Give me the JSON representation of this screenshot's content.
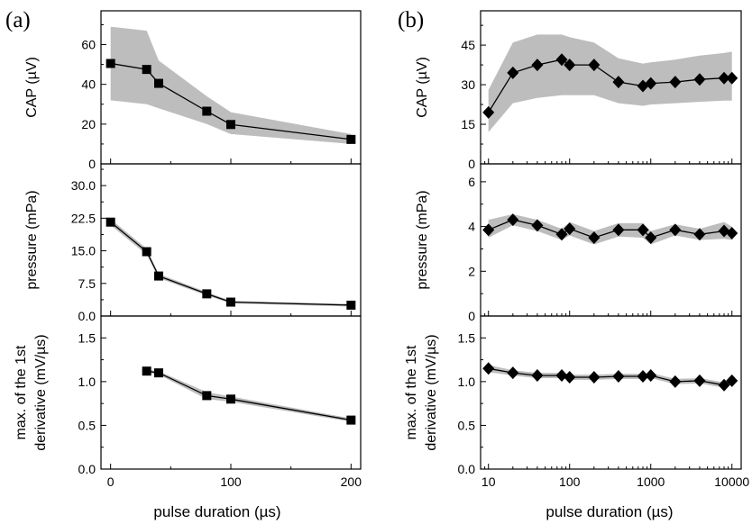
{
  "figure": {
    "panel_labels": [
      "(a)",
      "(b)"
    ],
    "xlabel": "pulse duration (µs)"
  },
  "chart_data": [
    {
      "type": "line",
      "panel": "(a)",
      "row": 0,
      "xscale": "linear",
      "xlim": [
        -8,
        208
      ],
      "xticks": [
        0,
        100,
        200
      ],
      "xticklabels": [
        "0",
        "100",
        "200"
      ],
      "ylabel": "CAP (µV)",
      "ylim": [
        0,
        77
      ],
      "yticks": [
        0,
        20,
        40,
        60
      ],
      "yticklabels": [
        "0",
        "20",
        "40",
        "60"
      ],
      "marker": "square",
      "color": "#000000",
      "band_color": "#bdbdbd",
      "x": [
        0,
        30,
        40,
        80,
        100,
        200
      ],
      "values": [
        50.5,
        47.5,
        40.5,
        26.5,
        19.8,
        12.3
      ],
      "band_lower": [
        32,
        30,
        28,
        20,
        15,
        10
      ],
      "band_upper": [
        69,
        67,
        52,
        34,
        26,
        15
      ],
      "show_xticklabels": false
    },
    {
      "type": "line",
      "panel": "(a)",
      "row": 1,
      "xscale": "linear",
      "xlim": [
        -8,
        208
      ],
      "xticks": [
        0,
        100,
        200
      ],
      "xticklabels": [
        "0",
        "100",
        "200"
      ],
      "ylabel": "pressure (mPa)",
      "ylim": [
        0,
        35
      ],
      "yticks": [
        0,
        7.5,
        15,
        22.5,
        30
      ],
      "yticklabels": [
        "0.0",
        "7.5",
        "15.0",
        "22.5",
        "30.0"
      ],
      "marker": "square",
      "color": "#000000",
      "band_color": "#bdbdbd",
      "x": [
        0,
        30,
        40,
        80,
        100,
        200
      ],
      "values": [
        21.6,
        14.8,
        9.2,
        5.1,
        3.2,
        2.5
      ],
      "band_lower": [
        20.9,
        14.1,
        8.7,
        4.7,
        2.9,
        2.2
      ],
      "band_upper": [
        22.3,
        15.5,
        9.7,
        5.5,
        3.5,
        2.8
      ],
      "show_xticklabels": false
    },
    {
      "type": "line",
      "panel": "(a)",
      "row": 2,
      "xscale": "linear",
      "xlim": [
        -8,
        208
      ],
      "xticks": [
        0,
        100,
        200
      ],
      "xticklabels": [
        "0",
        "100",
        "200"
      ],
      "ylabel": "max. of the 1st derivative (mV/µs)",
      "ylim": [
        0,
        1.75
      ],
      "yticks": [
        0,
        0.5,
        1.0,
        1.5
      ],
      "yticklabels": [
        "0.0",
        "0.5",
        "1.0",
        "1.5"
      ],
      "marker": "square",
      "color": "#000000",
      "band_color": "#bdbdbd",
      "x": [
        30,
        40,
        80,
        100,
        200
      ],
      "values": [
        1.12,
        1.1,
        0.84,
        0.8,
        0.56
      ],
      "band_lower": [
        1.1,
        1.08,
        0.8,
        0.77,
        0.54
      ],
      "band_upper": [
        1.14,
        1.12,
        0.88,
        0.83,
        0.58
      ],
      "show_xticklabels": true
    },
    {
      "type": "line",
      "panel": "(b)",
      "row": 0,
      "xscale": "log",
      "xlim": [
        8,
        13000
      ],
      "xticks": [
        10,
        100,
        1000,
        10000
      ],
      "xticklabels": [
        "10",
        "100",
        "1000",
        "10000"
      ],
      "ylabel": "CAP (µV)",
      "ylim": [
        0,
        58
      ],
      "yticks": [
        0,
        15,
        30,
        45
      ],
      "yticklabels": [
        "0",
        "15",
        "30",
        "45"
      ],
      "marker": "diamond",
      "color": "#000000",
      "band_color": "#bdbdbd",
      "x": [
        10,
        20,
        40,
        80,
        100,
        200,
        400,
        800,
        1000,
        2000,
        4000,
        8000,
        10000
      ],
      "values": [
        19.5,
        34.5,
        37.5,
        39.5,
        37.5,
        37.5,
        31,
        29.5,
        30.5,
        31,
        32,
        32.5,
        32.5
      ],
      "band_lower": [
        12,
        23,
        25,
        26,
        26,
        26,
        23,
        22,
        22.5,
        23,
        23.5,
        24,
        24
      ],
      "band_upper": [
        28,
        46,
        49,
        49,
        48,
        46,
        40,
        38,
        38.5,
        39.5,
        41,
        42,
        42.5
      ],
      "show_xticklabels": false
    },
    {
      "type": "line",
      "panel": "(b)",
      "row": 1,
      "xscale": "log",
      "xlim": [
        8,
        13000
      ],
      "xticks": [
        10,
        100,
        1000,
        10000
      ],
      "xticklabels": [
        "10",
        "100",
        "1000",
        "10000"
      ],
      "ylabel": "pressure (mPa)",
      "ylim": [
        0,
        6.8
      ],
      "yticks": [
        0,
        2,
        4,
        6
      ],
      "yticklabels": [
        "0",
        "2",
        "4",
        "6"
      ],
      "marker": "diamond",
      "color": "#000000",
      "band_color": "#bdbdbd",
      "x": [
        10,
        20,
        40,
        80,
        100,
        200,
        400,
        800,
        1000,
        2000,
        4000,
        8000,
        10000
      ],
      "values": [
        3.85,
        4.3,
        4.05,
        3.65,
        3.9,
        3.5,
        3.85,
        3.85,
        3.5,
        3.85,
        3.65,
        3.8,
        3.7
      ],
      "band_lower": [
        3.5,
        4.05,
        3.8,
        3.4,
        3.6,
        3.2,
        3.55,
        3.5,
        3.2,
        3.6,
        3.4,
        3.45,
        3.4
      ],
      "band_upper": [
        4.3,
        4.55,
        4.3,
        3.9,
        4.2,
        3.8,
        4.15,
        4.15,
        3.8,
        4.1,
        3.9,
        4.2,
        4.0
      ],
      "show_xticklabels": false
    },
    {
      "type": "line",
      "panel": "(b)",
      "row": 2,
      "xscale": "log",
      "xlim": [
        8,
        13000
      ],
      "xticks": [
        10,
        100,
        1000,
        10000
      ],
      "xticklabels": [
        "10",
        "100",
        "1000",
        "10000"
      ],
      "ylabel": "max. of the 1st derivative (mV/µs)",
      "ylim": [
        0,
        1.75
      ],
      "yticks": [
        0,
        0.5,
        1.0,
        1.5
      ],
      "yticklabels": [
        "0.0",
        "0.5",
        "1.0",
        "1.5"
      ],
      "marker": "diamond",
      "color": "#000000",
      "band_color": "#bdbdbd",
      "x": [
        10,
        20,
        40,
        80,
        100,
        200,
        400,
        800,
        1000,
        2000,
        4000,
        8000,
        10000
      ],
      "values": [
        1.15,
        1.1,
        1.07,
        1.07,
        1.05,
        1.05,
        1.06,
        1.06,
        1.07,
        1.0,
        1.01,
        0.96,
        1.01
      ],
      "band_lower": [
        1.11,
        1.07,
        1.04,
        1.04,
        1.02,
        1.02,
        1.03,
        1.03,
        1.04,
        0.97,
        0.98,
        0.93,
        0.98
      ],
      "band_upper": [
        1.19,
        1.13,
        1.1,
        1.1,
        1.08,
        1.08,
        1.09,
        1.09,
        1.1,
        1.03,
        1.04,
        0.99,
        1.04
      ],
      "show_xticklabels": true
    }
  ]
}
